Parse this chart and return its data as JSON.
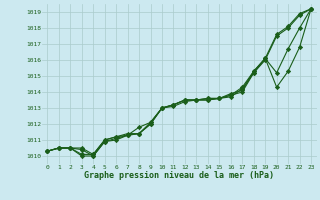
{
  "title": "Graphe pression niveau de la mer (hPa)",
  "yticks": [
    1010,
    1011,
    1012,
    1013,
    1014,
    1015,
    1016,
    1017,
    1018,
    1019
  ],
  "ylim": [
    1009.5,
    1019.5
  ],
  "xlim": [
    -0.5,
    23.5
  ],
  "background_color": "#cce9f0",
  "grid_color": "#aacccc",
  "line_color": "#1a5e1a",
  "marker": "D",
  "marker_size": 2.2,
  "line_width": 0.8,
  "series": [
    [
      1010.3,
      1010.5,
      1010.5,
      1010.5,
      1010.1,
      1011.0,
      1011.2,
      1011.3,
      1011.4,
      1012.0,
      1013.0,
      1013.2,
      1013.5,
      1013.5,
      1013.6,
      1013.6,
      1013.8,
      1014.0,
      1015.2,
      1016.0,
      1017.5,
      1018.0,
      1018.8,
      1019.2
    ],
    [
      1010.3,
      1010.5,
      1010.5,
      1010.4,
      1010.0,
      1010.9,
      1011.1,
      1011.3,
      1011.8,
      1012.1,
      1013.0,
      1013.1,
      1013.4,
      1013.5,
      1013.5,
      1013.6,
      1013.7,
      1014.2,
      1015.2,
      1016.1,
      1015.2,
      1016.7,
      1018.0,
      1019.2
    ],
    [
      1010.3,
      1010.5,
      1010.5,
      1010.0,
      1010.0,
      1010.9,
      1011.0,
      1011.3,
      1011.4,
      1012.0,
      1013.0,
      1013.2,
      1013.5,
      1013.5,
      1013.5,
      1013.6,
      1013.8,
      1014.3,
      1015.3,
      1016.1,
      1014.3,
      1015.3,
      1016.8,
      1019.2
    ],
    [
      1010.3,
      1010.5,
      1010.5,
      1010.1,
      1010.1,
      1011.0,
      1011.2,
      1011.4,
      1011.4,
      1012.1,
      1013.0,
      1013.2,
      1013.5,
      1013.5,
      1013.6,
      1013.6,
      1013.9,
      1014.1,
      1015.3,
      1016.1,
      1017.6,
      1018.1,
      1018.9,
      1019.2
    ]
  ]
}
